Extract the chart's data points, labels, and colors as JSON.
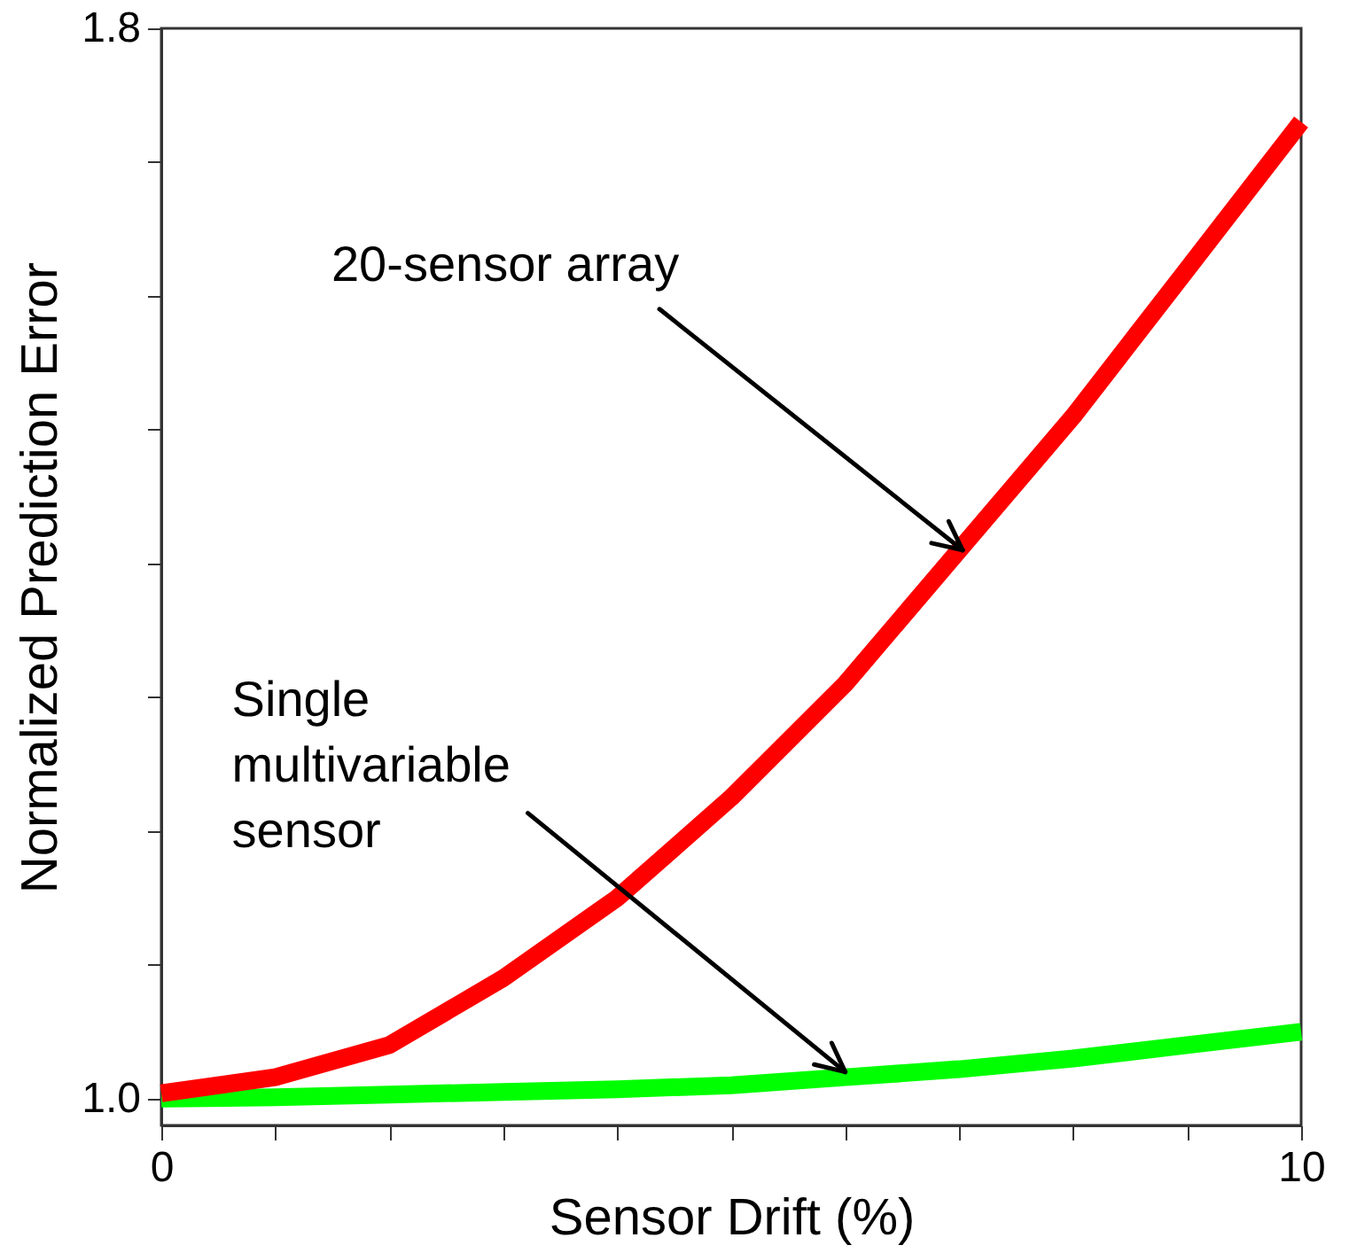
{
  "chart_data": {
    "type": "line",
    "xlabel": "Sensor Drift (%)",
    "ylabel": "Normalized Prediction Error",
    "x": [
      0,
      1,
      2,
      3,
      4,
      5,
      6,
      7,
      8,
      9,
      10
    ],
    "series": [
      {
        "color": "#00ff00",
        "values": [
          1.0,
          1.001,
          1.003,
          1.005,
          1.007,
          1.01,
          1.016,
          1.022,
          1.03,
          1.04,
          1.05
        ]
      },
      {
        "color": "#ff0000",
        "values": [
          1.004,
          1.016,
          1.04,
          1.09,
          1.15,
          1.225,
          1.31,
          1.41,
          1.51,
          1.62,
          1.73
        ]
      }
    ],
    "xlim": [
      0,
      10
    ],
    "ylim": [
      0.98,
      1.8
    ],
    "xticks": [
      0,
      {
        "value": 1,
        "label": null
      },
      {
        "value": 2,
        "label": null
      },
      {
        "value": 3,
        "label": null
      },
      {
        "value": 4,
        "label": null
      },
      {
        "value": 5,
        "label": null
      },
      {
        "value": 6,
        "label": null
      },
      {
        "value": 7,
        "label": null
      },
      {
        "value": 8,
        "label": null
      },
      {
        "value": 9,
        "label": null
      },
      10
    ],
    "yticks": [
      {
        "value": 1.0,
        "label": "1.0"
      },
      {
        "value": 1.1,
        "label": null
      },
      {
        "value": 1.2,
        "label": null
      },
      {
        "value": 1.3,
        "label": null
      },
      {
        "value": 1.4,
        "label": null
      },
      {
        "value": 1.5,
        "label": null
      },
      {
        "value": 1.6,
        "label": null
      },
      {
        "value": 1.7,
        "label": null
      },
      {
        "value": 1.8,
        "label": "1.8"
      }
    ],
    "annotations": [
      {
        "text": "20-sensor array",
        "x": 7.03,
        "y": 1.41
      },
      {
        "text": "Single multivariable sensor",
        "x": 6,
        "y": 1.02
      }
    ],
    "grid": false,
    "marker": "none",
    "line_style": "solid"
  }
}
